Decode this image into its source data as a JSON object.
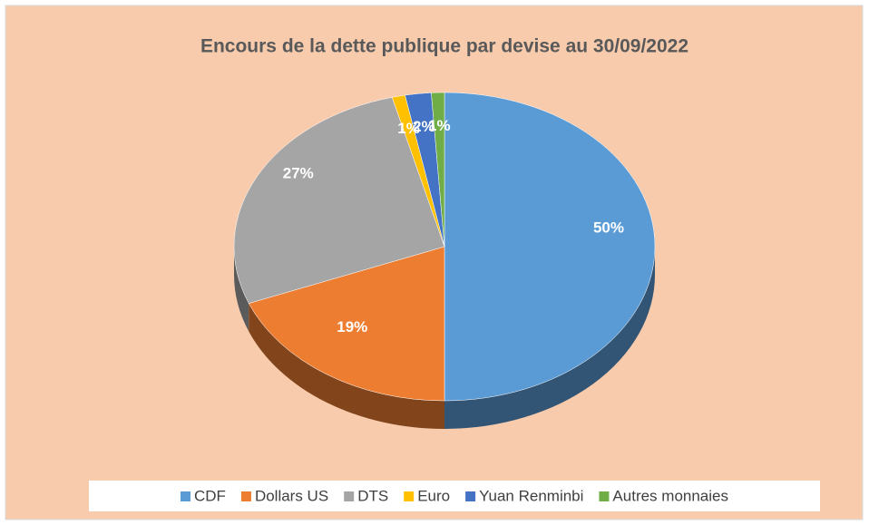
{
  "chart_data": {
    "type": "pie",
    "title": "Encours de la dette publique par devise au 30/09/2022",
    "categories": [
      "CDF",
      "Dollars US",
      "DTS",
      "Euro",
      "Yuan Renminbi",
      "Autres monnaies"
    ],
    "values": [
      50,
      19,
      27,
      1,
      2,
      1
    ],
    "value_labels": [
      "50%",
      "19%",
      "27%",
      "1%",
      "2%",
      "1%"
    ],
    "colors": [
      "#5b9bd5",
      "#ed7d31",
      "#a5a5a5",
      "#ffc000",
      "#4472c4",
      "#70ad47"
    ],
    "legend": "bottom"
  }
}
